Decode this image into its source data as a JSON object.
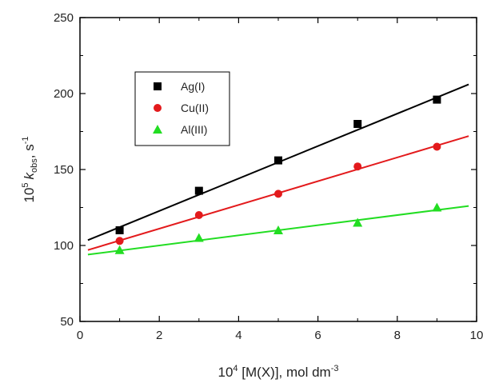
{
  "chart_data": {
    "type": "scatter",
    "xlim": [
      0,
      10
    ],
    "ylim": [
      50,
      250
    ],
    "xticks": [
      0,
      2,
      4,
      6,
      8,
      10
    ],
    "yticks": [
      50,
      100,
      150,
      200,
      250
    ],
    "xlabel": {
      "base": "10",
      "base_sup": "4",
      "text": " [M(X)], mol dm",
      "unit_sup": "-3"
    },
    "ylabel": {
      "base": "10",
      "base_sup": "5",
      "k": "k",
      "k_sub": "obs",
      "unit": ", s",
      "unit_sup": "-1"
    },
    "legend_position": "upper-left",
    "grid": false,
    "series": [
      {
        "name": "Ag(I)",
        "marker": "square",
        "color": "#000000",
        "x": [
          1,
          3,
          5,
          7,
          9
        ],
        "y": [
          110,
          136,
          156,
          180,
          196
        ],
        "fit": {
          "x": [
            0.2,
            9.8
          ],
          "y": [
            103.5,
            206
          ]
        }
      },
      {
        "name": "Cu(II)",
        "marker": "circle",
        "color": "#e31a1c",
        "x": [
          1,
          3,
          5,
          7,
          9
        ],
        "y": [
          103,
          120,
          134,
          152,
          165
        ],
        "fit": {
          "x": [
            0.2,
            9.8
          ],
          "y": [
            97,
            172
          ]
        }
      },
      {
        "name": "Al(III)",
        "marker": "triangle",
        "color": "#22dd22",
        "x": [
          1,
          3,
          5,
          7,
          9
        ],
        "y": [
          97,
          105,
          110,
          115,
          125
        ],
        "fit": {
          "x": [
            0.2,
            9.8
          ],
          "y": [
            94,
            126
          ]
        }
      }
    ]
  }
}
